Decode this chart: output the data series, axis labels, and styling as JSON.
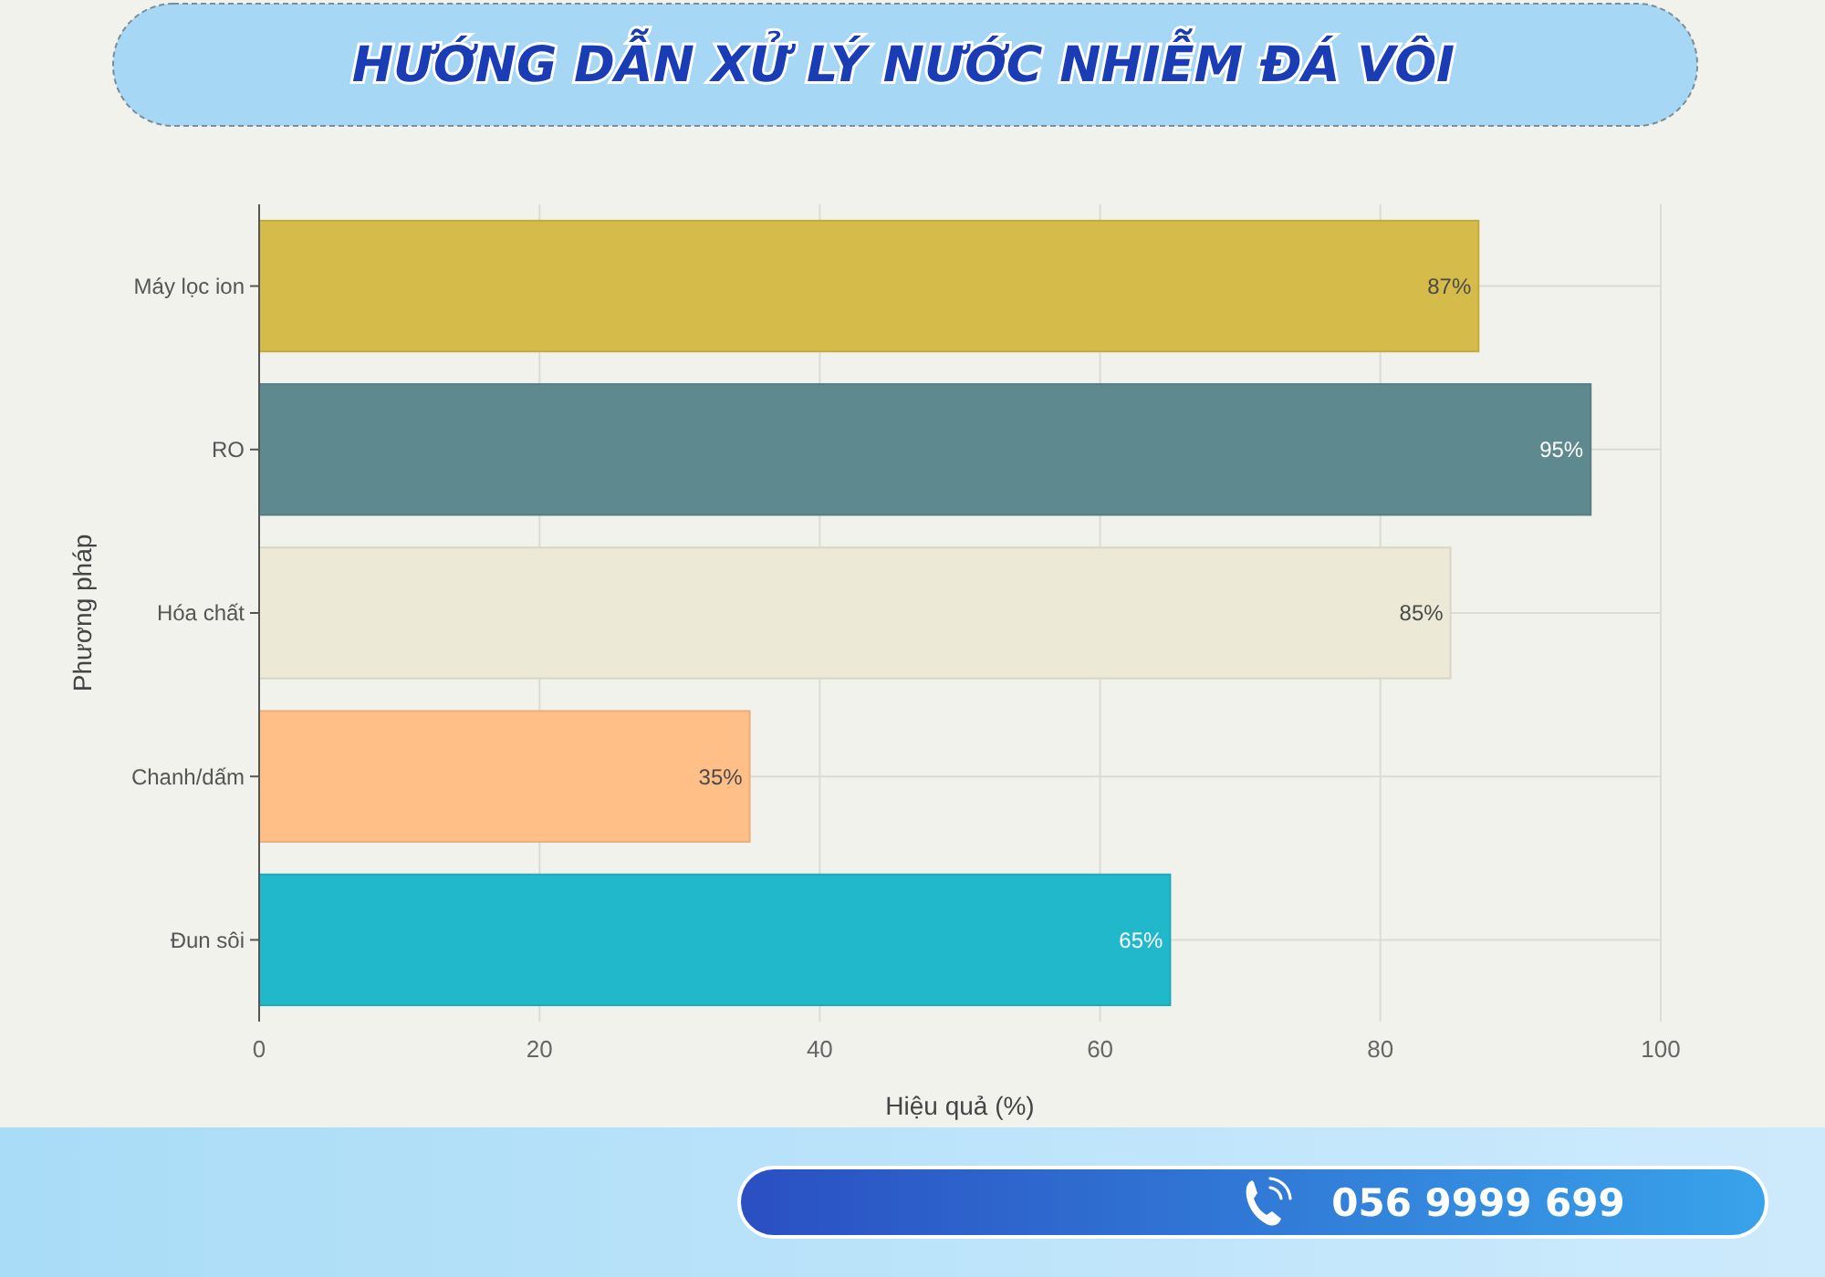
{
  "chart_data": {
    "type": "bar",
    "orientation": "horizontal",
    "title": "HƯỚNG DẪN XỬ LÝ NƯỚC NHIỄM ĐÁ VÔI",
    "xlabel": "Hiệu quả (%)",
    "ylabel": "Phương pháp",
    "categories": [
      "Máy lọc ion",
      "RO",
      "Hóa chất",
      "Chanh/dấm",
      "Đun sôi"
    ],
    "values": [
      87,
      95,
      85,
      35,
      65
    ],
    "colors": [
      "#d4bb4a",
      "#5e8a8f",
      "#ece9d6",
      "#ffbf87",
      "#22b8cc"
    ],
    "value_labels": [
      "87%",
      "95%",
      "85%",
      "35%",
      "65%"
    ],
    "xlim": [
      0,
      100
    ],
    "xticks": [
      0,
      20,
      40,
      60,
      80,
      100
    ],
    "grid": true,
    "annotations": [
      "056 9999 699"
    ]
  }
}
